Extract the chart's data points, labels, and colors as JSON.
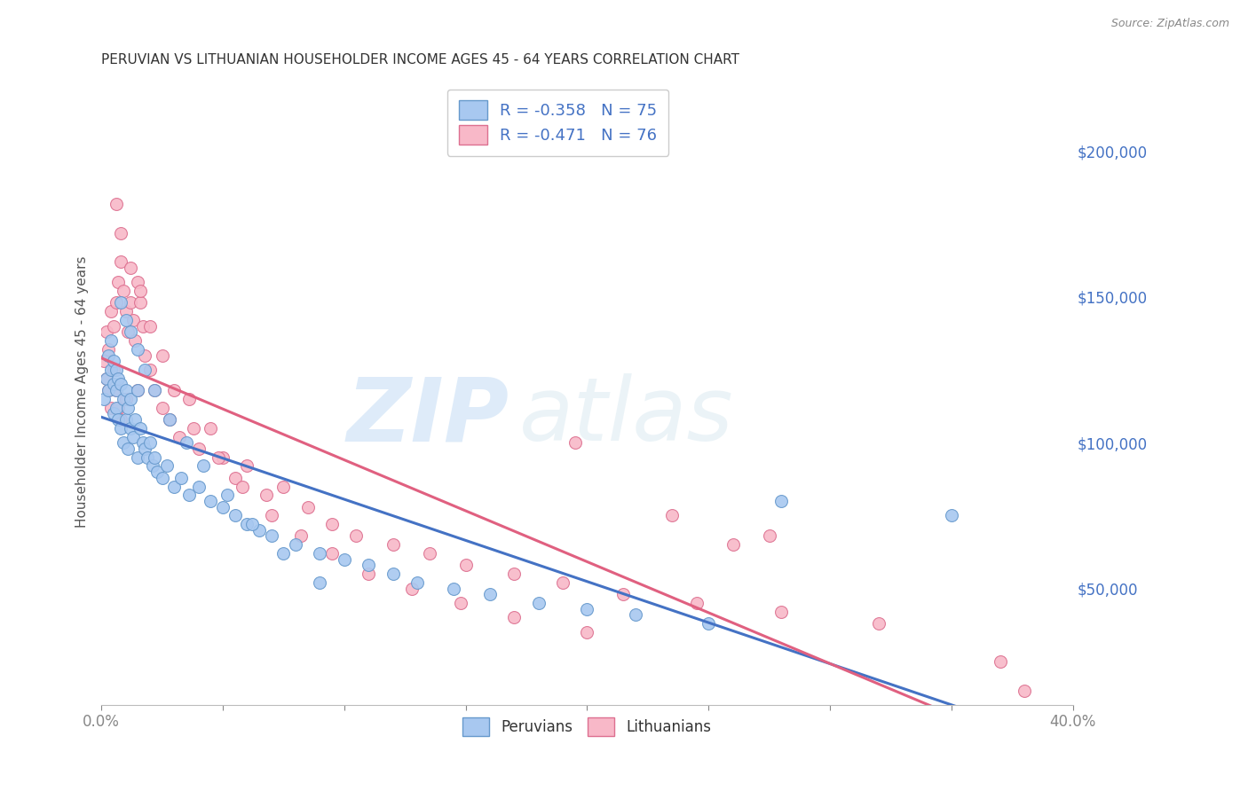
{
  "title": "PERUVIAN VS LITHUANIAN HOUSEHOLDER INCOME AGES 45 - 64 YEARS CORRELATION CHART",
  "source": "Source: ZipAtlas.com",
  "ylabel": "Householder Income Ages 45 - 64 years",
  "xlim": [
    0.0,
    0.4
  ],
  "ylim": [
    10000,
    225000
  ],
  "yticks_right": [
    50000,
    100000,
    150000,
    200000
  ],
  "xticks": [
    0.0,
    0.05,
    0.1,
    0.15,
    0.2,
    0.25,
    0.3,
    0.35,
    0.4
  ],
  "xtick_labels": [
    "0.0%",
    "",
    "",
    "",
    "",
    "",
    "",
    "",
    "40.0%"
  ],
  "peruvian_color": "#a8c8f0",
  "peruvian_edge": "#6699cc",
  "lithuanian_color": "#f8b8c8",
  "lithuanian_edge": "#dd7090",
  "peruvian_R": -0.358,
  "peruvian_N": 75,
  "lithuanian_R": -0.471,
  "lithuanian_N": 76,
  "peruvian_line_color": "#4472C4",
  "lithuanian_line_color": "#E06080",
  "watermark_zip": "ZIP",
  "watermark_atlas": "atlas",
  "background_color": "#ffffff",
  "grid_color": "#cccccc",
  "peruvians_x": [
    0.001,
    0.002,
    0.003,
    0.003,
    0.004,
    0.004,
    0.005,
    0.005,
    0.005,
    0.006,
    0.006,
    0.006,
    0.007,
    0.007,
    0.008,
    0.008,
    0.009,
    0.009,
    0.01,
    0.01,
    0.011,
    0.011,
    0.012,
    0.012,
    0.013,
    0.014,
    0.015,
    0.015,
    0.016,
    0.017,
    0.018,
    0.019,
    0.02,
    0.021,
    0.022,
    0.023,
    0.025,
    0.027,
    0.03,
    0.033,
    0.036,
    0.04,
    0.045,
    0.05,
    0.055,
    0.06,
    0.065,
    0.07,
    0.08,
    0.09,
    0.1,
    0.11,
    0.12,
    0.13,
    0.145,
    0.16,
    0.18,
    0.2,
    0.22,
    0.25,
    0.008,
    0.01,
    0.012,
    0.015,
    0.018,
    0.022,
    0.028,
    0.035,
    0.042,
    0.052,
    0.062,
    0.075,
    0.09,
    0.28,
    0.35
  ],
  "peruvians_y": [
    115000,
    122000,
    118000,
    130000,
    125000,
    135000,
    128000,
    120000,
    110000,
    125000,
    118000,
    112000,
    122000,
    108000,
    120000,
    105000,
    115000,
    100000,
    118000,
    108000,
    112000,
    98000,
    105000,
    115000,
    102000,
    108000,
    118000,
    95000,
    105000,
    100000,
    98000,
    95000,
    100000,
    92000,
    95000,
    90000,
    88000,
    92000,
    85000,
    88000,
    82000,
    85000,
    80000,
    78000,
    75000,
    72000,
    70000,
    68000,
    65000,
    62000,
    60000,
    58000,
    55000,
    52000,
    50000,
    48000,
    45000,
    43000,
    41000,
    38000,
    148000,
    142000,
    138000,
    132000,
    125000,
    118000,
    108000,
    100000,
    92000,
    82000,
    72000,
    62000,
    52000,
    80000,
    75000
  ],
  "lithuanians_x": [
    0.001,
    0.002,
    0.002,
    0.003,
    0.003,
    0.004,
    0.004,
    0.005,
    0.005,
    0.006,
    0.006,
    0.007,
    0.007,
    0.008,
    0.008,
    0.009,
    0.01,
    0.01,
    0.011,
    0.012,
    0.013,
    0.014,
    0.015,
    0.015,
    0.016,
    0.017,
    0.018,
    0.02,
    0.022,
    0.025,
    0.028,
    0.032,
    0.036,
    0.04,
    0.045,
    0.05,
    0.055,
    0.06,
    0.068,
    0.075,
    0.085,
    0.095,
    0.105,
    0.12,
    0.135,
    0.15,
    0.17,
    0.19,
    0.215,
    0.245,
    0.28,
    0.32,
    0.006,
    0.008,
    0.012,
    0.016,
    0.02,
    0.025,
    0.03,
    0.038,
    0.048,
    0.058,
    0.07,
    0.082,
    0.095,
    0.11,
    0.128,
    0.148,
    0.17,
    0.2,
    0.235,
    0.275,
    0.195,
    0.26,
    0.37,
    0.38
  ],
  "lithuanians_y": [
    128000,
    138000,
    122000,
    132000,
    118000,
    145000,
    112000,
    140000,
    125000,
    148000,
    118000,
    155000,
    112000,
    162000,
    108000,
    152000,
    145000,
    115000,
    138000,
    148000,
    142000,
    135000,
    155000,
    118000,
    148000,
    140000,
    130000,
    125000,
    118000,
    112000,
    108000,
    102000,
    115000,
    98000,
    105000,
    95000,
    88000,
    92000,
    82000,
    85000,
    78000,
    72000,
    68000,
    65000,
    62000,
    58000,
    55000,
    52000,
    48000,
    45000,
    42000,
    38000,
    182000,
    172000,
    160000,
    152000,
    140000,
    130000,
    118000,
    105000,
    95000,
    85000,
    75000,
    68000,
    62000,
    55000,
    50000,
    45000,
    40000,
    35000,
    75000,
    68000,
    100000,
    65000,
    25000,
    15000
  ]
}
